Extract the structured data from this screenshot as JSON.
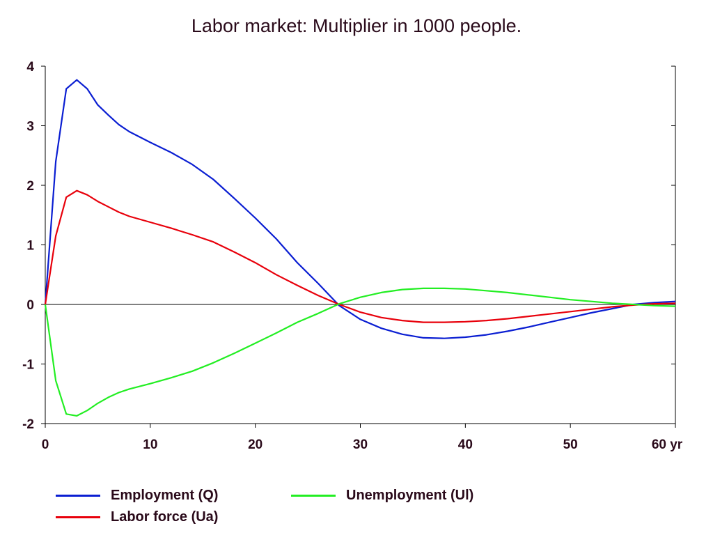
{
  "chart_data": {
    "type": "line",
    "title": "Labor market: Multiplier in 1000 people.",
    "xlabel": "",
    "ylabel": "",
    "xlim": [
      0,
      60
    ],
    "ylim": [
      -2,
      4
    ],
    "x_ticks": [
      "0",
      "10",
      "20",
      "30",
      "40",
      "50",
      "60 yr"
    ],
    "y_ticks": [
      "-2",
      "-1",
      "0",
      "1",
      "2",
      "3",
      "4"
    ],
    "x": [
      0,
      1,
      2,
      3,
      4,
      5,
      6,
      7,
      8,
      10,
      12,
      14,
      16,
      18,
      20,
      22,
      24,
      26,
      28,
      30,
      32,
      34,
      36,
      38,
      40,
      42,
      44,
      46,
      48,
      50,
      52,
      54,
      56,
      58,
      60
    ],
    "series": [
      {
        "name": "Employment (Q)",
        "color": "#0a1ed2",
        "values": [
          0,
          2.4,
          3.62,
          3.77,
          3.62,
          3.35,
          3.18,
          3.02,
          2.9,
          2.72,
          2.55,
          2.35,
          2.1,
          1.78,
          1.45,
          1.1,
          0.7,
          0.35,
          -0.02,
          -0.25,
          -0.4,
          -0.5,
          -0.56,
          -0.57,
          -0.55,
          -0.51,
          -0.45,
          -0.38,
          -0.3,
          -0.22,
          -0.14,
          -0.07,
          0,
          0.03,
          0.05
        ]
      },
      {
        "name": "Labor force (Ua)",
        "color": "#e8000b",
        "values": [
          0,
          1.15,
          1.8,
          1.91,
          1.84,
          1.73,
          1.64,
          1.55,
          1.48,
          1.38,
          1.28,
          1.17,
          1.05,
          0.88,
          0.7,
          0.5,
          0.32,
          0.15,
          0,
          -0.13,
          -0.22,
          -0.27,
          -0.3,
          -0.3,
          -0.29,
          -0.27,
          -0.24,
          -0.2,
          -0.16,
          -0.12,
          -0.08,
          -0.04,
          -0.01,
          0.01,
          0.02
        ]
      },
      {
        "name": "Unemployment (Ul)",
        "color": "#22ee22",
        "values": [
          0,
          -1.28,
          -1.84,
          -1.87,
          -1.78,
          -1.66,
          -1.56,
          -1.48,
          -1.42,
          -1.33,
          -1.23,
          -1.12,
          -0.98,
          -0.82,
          -0.65,
          -0.48,
          -0.3,
          -0.15,
          0.01,
          0.12,
          0.2,
          0.25,
          0.27,
          0.27,
          0.26,
          0.23,
          0.2,
          0.16,
          0.12,
          0.08,
          0.05,
          0.02,
          0,
          -0.02,
          -0.03
        ]
      }
    ],
    "legend_position": "bottom",
    "grid": false,
    "zero_line": true
  }
}
